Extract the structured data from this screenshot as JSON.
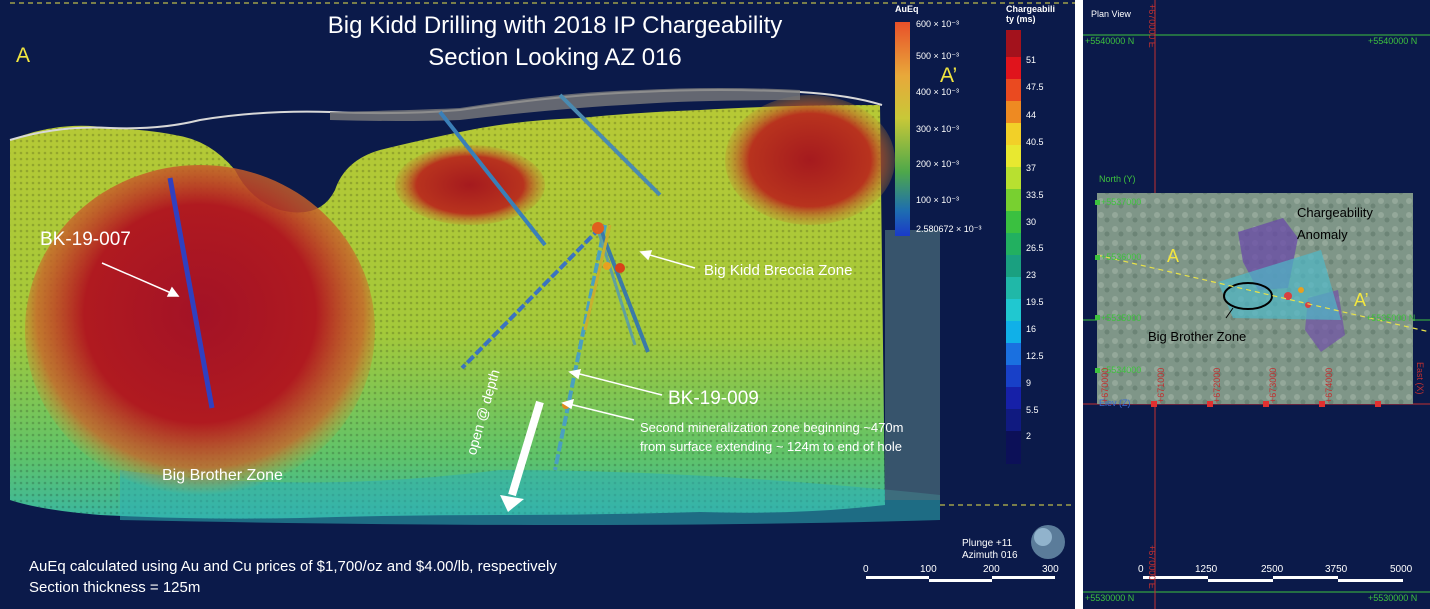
{
  "section": {
    "title_line1": "Big Kidd Drilling with 2018 IP Chargeability",
    "title_line2": "Section Looking  AZ 016",
    "corner_a": "A",
    "corner_a_prime": "A’",
    "hole_label_007": "BK-19-007",
    "hole_label_009": "BK-19-009",
    "zone_breccia": "Big Kidd Breccia Zone",
    "zone_big_brother": "Big Brother Zone",
    "open_depth": "open @ depth",
    "second_zone_line1": "Second mineralization zone beginning ~470m",
    "second_zone_line2": "from surface extending ~ 124m to end of hole",
    "footnote_line1": "AuEq calculated using Au and Cu prices of $1,700/oz and $4.00/lb, respectively",
    "footnote_line2": "Section thickness = 125m",
    "plunge": "Plunge +11",
    "azimuth": "Azimuth 016",
    "scale_ticks": [
      "0",
      "100",
      "200",
      "300"
    ]
  },
  "legend_aueq": {
    "title": "AuEq",
    "ticks": [
      "600 × 10⁻³",
      "500 × 10⁻³",
      "400 × 10⁻³",
      "300 × 10⁻³",
      "200 × 10⁻³",
      "100 × 10⁻³",
      "2.580672 × 10⁻³"
    ]
  },
  "legend_charge": {
    "title_line1": "Chargeabili",
    "title_line2": "ty (ms)",
    "ticks": [
      "51",
      "47.5",
      "44",
      "40.5",
      "37",
      "33.5",
      "30",
      "26.5",
      "23",
      "19.5",
      "16",
      "12.5",
      "9",
      "5.5",
      "2"
    ]
  },
  "plan": {
    "title": "Plan View",
    "north_top_left": "+5540000 N",
    "north_top_right": "+5540000 N",
    "north_bottom_left": "+5530000 N",
    "north_bottom_right": "+5530000 N",
    "east_top": "+670000 E",
    "east_bottom": "+670000 E",
    "north_axis": "North (Y)",
    "east_axis": "East (X)",
    "elev_axis": "Elev (Z)",
    "y_ticks": [
      "+5537000",
      "+5536000",
      "+5535000",
      "+5534000"
    ],
    "y_tick_right": "+5535000 N",
    "x_ticks": [
      "+670000",
      "+671000",
      "+672000",
      "+673000",
      "+674000"
    ],
    "label_a": "A",
    "label_a_prime": "A’",
    "charge_anomaly_line1": "Chargeability",
    "charge_anomaly_line2": "Anomaly",
    "big_brother": "Big Brother Zone",
    "scale_ticks": [
      "0",
      "1250",
      "2500",
      "3750",
      "5000"
    ]
  }
}
